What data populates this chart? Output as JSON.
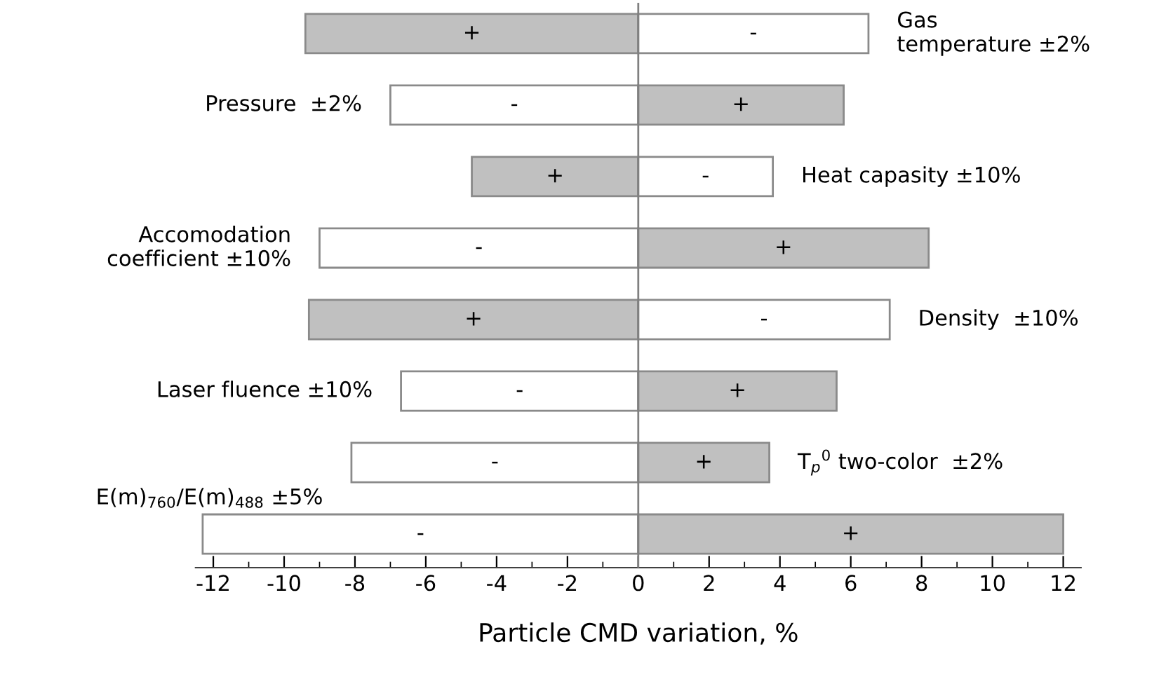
{
  "chart_data": {
    "type": "bar",
    "orientation": "horizontal",
    "xlabel": "Particle CMD variation, %",
    "categories": [
      "Gas\ntemperature ±2%",
      "Pressure  ±2%",
      "Heat capasity ±10%",
      "Accomodation\ncoefficient ±10%",
      "Density  ±10%",
      "Laser fluence ±10%",
      "T$_{p}$$^{0}$ two-color  ±2%",
      null
    ],
    "annotations": [
      "E(m)$_{760}$/E(m)$_{488}$ ±5%"
    ],
    "stacked": true,
    "ref_lines": [
      {
        "axis": "x",
        "value": 0,
        "color": "#808080"
      }
    ],
    "series": [
      {
        "values": [
          -9.4,
          -7.0,
          -4.7,
          -9.0,
          -9.3,
          -6.7,
          -8.1,
          -12.3
        ],
        "colors": [
          "#c0c0c0",
          "#ffffff",
          "#c0c0c0",
          "#ffffff",
          "#c0c0c0",
          "#ffffff",
          "#ffffff",
          "#ffffff"
        ],
        "value_labels": [
          "+",
          "-",
          "+",
          "-",
          "+",
          "-",
          "-",
          "-"
        ]
      },
      {
        "values": [
          6.5,
          5.8,
          3.8,
          8.2,
          7.1,
          5.6,
          3.7,
          12.0
        ],
        "colors": [
          "#ffffff",
          "#c0c0c0",
          "#ffffff",
          "#c0c0c0",
          "#ffffff",
          "#c0c0c0",
          "#c0c0c0",
          "#c0c0c0"
        ],
        "value_labels": [
          "-",
          "+",
          "-",
          "+",
          "-",
          "+",
          "+",
          "+"
        ]
      }
    ],
    "xlim": [
      -12.5,
      12.5
    ],
    "xticks": [
      -12,
      -10,
      -8,
      -6,
      -4,
      -2,
      0,
      2,
      4,
      6,
      8,
      10,
      12
    ],
    "grid": false,
    "legend": false
  }
}
